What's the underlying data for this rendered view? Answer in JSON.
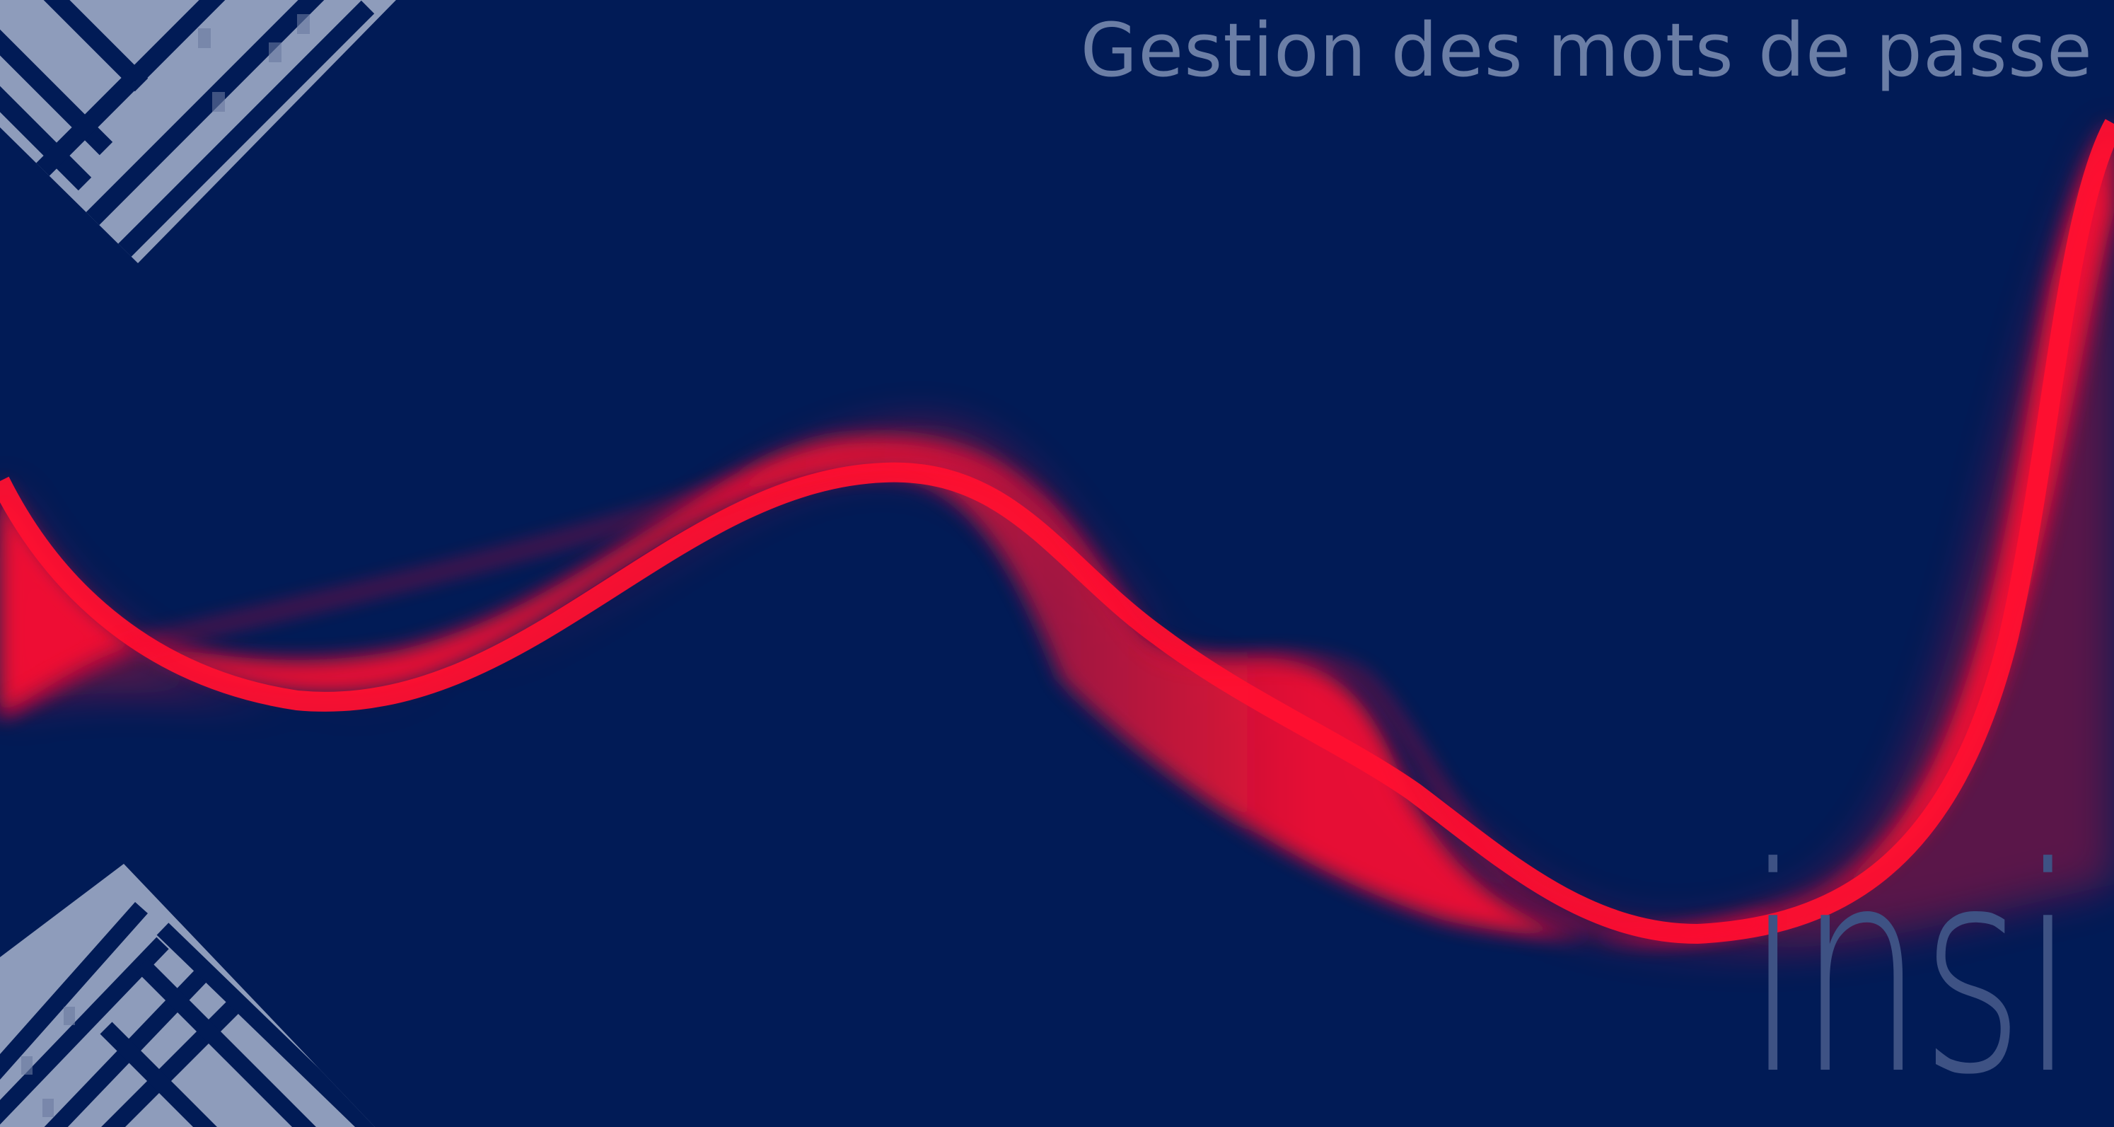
{
  "slide": {
    "title": "Gestion des mots de passe",
    "logo_text": "insi"
  },
  "colors": {
    "background": "#011b56",
    "title": "#6b7ea6",
    "ribbon": "#ff1030",
    "ribbon_dark": "#8c1745",
    "pattern_stripe": "#8e9cbb",
    "logo": "#3e5284"
  },
  "decorations": {
    "top_left": "diagonal-stripe-building-pattern",
    "bottom_left": "diagonal-stripe-building-pattern",
    "center": "red-wave-ribbon"
  }
}
